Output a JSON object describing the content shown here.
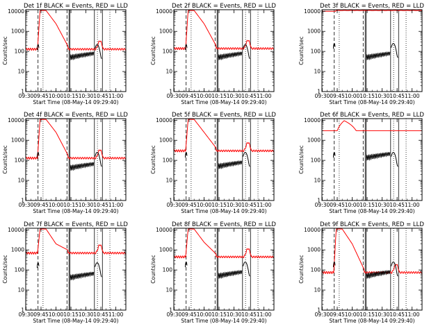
{
  "figure": {
    "ylabel": "Counts/sec",
    "xlabel": "Start Time (08-May-14 09:29:40)",
    "ytick_labels": [
      "1",
      "10",
      "100",
      "1000",
      "10000"
    ],
    "xtick_labels": [
      "09:30",
      "09:45",
      "10:00",
      "10:15",
      "10:30",
      "10:45",
      "11:00"
    ],
    "colors": {
      "events": "#000000",
      "lld": "#ff0000",
      "axes": "#000000"
    }
  },
  "chart_data": [
    {
      "type": "line",
      "title": "Det 1f BLACK = Events, RED = LLD",
      "yscale": "log",
      "ylim": [
        1,
        12000
      ],
      "x": [
        "09:29:40",
        "11:10:00"
      ],
      "lld_profile": "flare",
      "series": [
        {
          "name": "Events",
          "peak": 220,
          "base": 60
        },
        {
          "name": "LLD",
          "peak": 11000,
          "base": 130,
          "shoulder": 2400
        }
      ]
    },
    {
      "type": "line",
      "title": "Det 2f BLACK = Events, RED = LLD",
      "yscale": "log",
      "ylim": [
        1,
        12000
      ],
      "x": [
        "09:29:40",
        "11:10:00"
      ],
      "lld_profile": "flare",
      "series": [
        {
          "name": "Events",
          "peak": 220,
          "base": 60
        },
        {
          "name": "LLD",
          "peak": 11000,
          "base": 140,
          "shoulder": 2400
        }
      ]
    },
    {
      "type": "line",
      "title": "Det 3f BLACK = Events, RED = LLD",
      "yscale": "log",
      "ylim": [
        1,
        12000
      ],
      "x": [
        "09:29:40",
        "11:10:00"
      ],
      "lld_profile": "flat",
      "series": [
        {
          "name": "Events",
          "peak": 250,
          "base": 60
        },
        {
          "name": "LLD",
          "peak": 11000,
          "base": 10000,
          "shoulder": 10000
        }
      ]
    },
    {
      "type": "line",
      "title": "Det 4f BLACK = Events, RED = LLD",
      "yscale": "log",
      "ylim": [
        1,
        12000
      ],
      "x": [
        "09:29:40",
        "11:10:00"
      ],
      "lld_profile": "flare",
      "series": [
        {
          "name": "Events",
          "peak": 250,
          "base": 50
        },
        {
          "name": "LLD",
          "peak": 11000,
          "base": 130,
          "shoulder": 2500
        }
      ]
    },
    {
      "type": "line",
      "title": "Det 5f BLACK = Events, RED = LLD",
      "yscale": "log",
      "ylim": [
        1,
        12000
      ],
      "x": [
        "09:29:40",
        "11:10:00"
      ],
      "lld_profile": "flare",
      "series": [
        {
          "name": "Events",
          "peak": 250,
          "base": 60
        },
        {
          "name": "LLD",
          "peak": 11000,
          "base": 300,
          "shoulder": 2500
        }
      ]
    },
    {
      "type": "line",
      "title": "Det 6f BLACK = Events, RED = LLD",
      "yscale": "log",
      "ylim": [
        1,
        12000
      ],
      "x": [
        "09:29:40",
        "11:10:00"
      ],
      "lld_profile": "bump",
      "series": [
        {
          "name": "Events",
          "peak": 250,
          "base": 160
        },
        {
          "name": "LLD",
          "peak": 9500,
          "base": 3000,
          "shoulder": 3000
        }
      ]
    },
    {
      "type": "line",
      "title": "Det 7f BLACK = Events, RED = LLD",
      "yscale": "log",
      "ylim": [
        1,
        12000
      ],
      "x": [
        "09:29:40",
        "11:10:00"
      ],
      "lld_profile": "flare",
      "series": [
        {
          "name": "Events",
          "peak": 230,
          "base": 50
        },
        {
          "name": "LLD",
          "peak": 11000,
          "base": 700,
          "shoulder": 2000
        }
      ]
    },
    {
      "type": "line",
      "title": "Det 8f BLACK = Events, RED = LLD",
      "yscale": "log",
      "ylim": [
        1,
        12000
      ],
      "x": [
        "09:29:40",
        "11:10:00"
      ],
      "lld_profile": "flare",
      "series": [
        {
          "name": "Events",
          "peak": 250,
          "base": 60
        },
        {
          "name": "LLD",
          "peak": 11000,
          "base": 450,
          "shoulder": 2400
        }
      ]
    },
    {
      "type": "line",
      "title": "Det 9f BLACK = Events, RED = LLD",
      "yscale": "log",
      "ylim": [
        1,
        12000
      ],
      "x": [
        "09:29:40",
        "11:10:00"
      ],
      "lld_profile": "flare",
      "series": [
        {
          "name": "Events",
          "peak": 250,
          "base": 60
        },
        {
          "name": "LLD",
          "peak": 11000,
          "base": 75,
          "shoulder": 2000
        }
      ]
    }
  ]
}
